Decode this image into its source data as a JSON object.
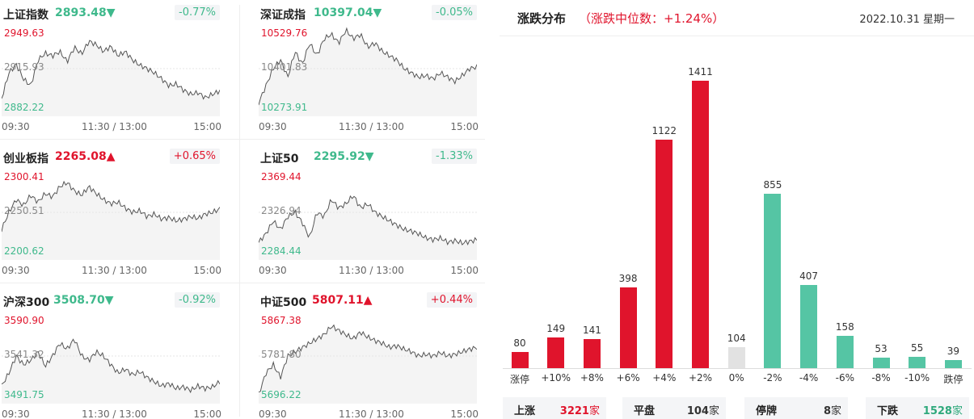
{
  "x_labels": [
    "09:30",
    "11:30 / 13:00",
    "15:00"
  ],
  "cards": [
    {
      "name": "上证指数",
      "price": "2893.48",
      "arrow": "▼",
      "dir": "down",
      "pct": "-0.77%",
      "hi": "2949.63",
      "mid": "2915.93",
      "lo": "2882.22"
    },
    {
      "name": "深证成指",
      "price": "10397.04",
      "arrow": "▼",
      "dir": "down",
      "pct": "-0.05%",
      "hi": "10529.76",
      "mid": "10401.83",
      "lo": "10273.91"
    },
    {
      "name": "创业板指",
      "price": "2265.08",
      "arrow": "▲",
      "dir": "up",
      "pct": "+0.65%",
      "hi": "2300.41",
      "mid": "2250.51",
      "lo": "2200.62"
    },
    {
      "name": "上证50",
      "price": "2295.92",
      "arrow": "▼",
      "dir": "down",
      "pct": "-1.33%",
      "hi": "2369.44",
      "mid": "2326.94",
      "lo": "2284.44"
    },
    {
      "name": "沪深300",
      "price": "3508.70",
      "arrow": "▼",
      "dir": "down",
      "pct": "-0.92%",
      "hi": "3590.90",
      "mid": "3541.32",
      "lo": "3491.75"
    },
    {
      "name": "中证500",
      "price": "5807.11",
      "arrow": "▲",
      "dir": "up",
      "pct": "+0.44%",
      "hi": "5867.38",
      "mid": "5781.80",
      "lo": "5696.22"
    }
  ],
  "dist": {
    "title": "涨跌分布",
    "median": "（涨跌中位数：+1.24%）",
    "date": "2022.10.31  星期一",
    "colors": {
      "up": "#e0142c",
      "flat": "#e2e2e2",
      "down": "#55c5a4"
    },
    "summary": [
      {
        "label": "上涨",
        "num": "3221",
        "unit": "家",
        "dir": "up"
      },
      {
        "label": "平盘",
        "num": "104",
        "unit": "家",
        "dir": "flat"
      },
      {
        "label": "停牌",
        "num": "8",
        "unit": "家",
        "dir": "flat"
      },
      {
        "label": "下跌",
        "num": "1528",
        "unit": "家",
        "dir": "down"
      }
    ]
  },
  "chart_data": {
    "type": "bar",
    "categories": [
      "涨停",
      "+10%",
      "+8%",
      "+6%",
      "+4%",
      "+2%",
      "0%",
      "-2%",
      "-4%",
      "-6%",
      "-8%",
      "-10%",
      "跌停"
    ],
    "values": [
      80,
      149,
      141,
      398,
      1122,
      1411,
      104,
      855,
      407,
      158,
      53,
      55,
      39
    ],
    "groups": [
      "up",
      "up",
      "up",
      "up",
      "up",
      "up",
      "flat",
      "down",
      "down",
      "down",
      "down",
      "down",
      "down"
    ]
  }
}
